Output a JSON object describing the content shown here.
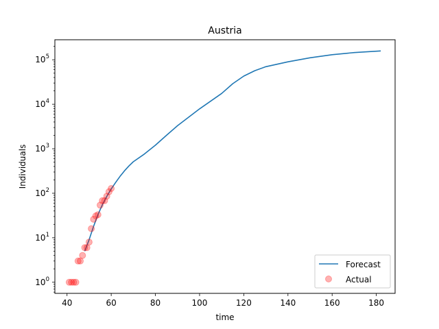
{
  "chart_data": {
    "type": "line",
    "title": "Austria",
    "xlabel": "time",
    "ylabel": "Individuals",
    "xlim": [
      34.5,
      188.5
    ],
    "ylim_log10": [
      -0.25,
      5.45
    ],
    "y_scale": "log",
    "grid": false,
    "legend_position": "lower right",
    "x_ticks": [
      40,
      60,
      80,
      100,
      120,
      140,
      160,
      180
    ],
    "x_tick_labels": [
      "40",
      "60",
      "80",
      "100",
      "120",
      "140",
      "160",
      "180"
    ],
    "y_ticks": [
      1,
      10,
      100,
      1000,
      10000,
      100000
    ],
    "y_tick_labels": [
      {
        "base": "10",
        "exp": "0"
      },
      {
        "base": "10",
        "exp": "1"
      },
      {
        "base": "10",
        "exp": "2"
      },
      {
        "base": "10",
        "exp": "3"
      },
      {
        "base": "10",
        "exp": "4"
      },
      {
        "base": "10",
        "exp": "5"
      }
    ],
    "series": [
      {
        "name": "Forecast",
        "kind": "line",
        "color": "#1f77b4",
        "x": [
          48,
          50,
          52,
          54,
          56,
          58,
          60,
          62,
          64,
          66,
          68,
          70,
          75,
          80,
          85,
          90,
          100,
          110,
          115,
          120,
          125,
          130,
          140,
          150,
          160,
          170,
          182
        ],
        "y": [
          5,
          9,
          18,
          33,
          55,
          85,
          125,
          175,
          240,
          320,
          410,
          510,
          760,
          1200,
          2000,
          3300,
          7900,
          17500,
          29000,
          43000,
          57000,
          70000,
          90000,
          111000,
          130000,
          145000,
          158000
        ]
      },
      {
        "name": "Actual",
        "kind": "scatter",
        "color": "#ff0000",
        "alpha": 0.3,
        "x": [
          41,
          42,
          43,
          44,
          45,
          46,
          47,
          48,
          49,
          50,
          51,
          52,
          53,
          54,
          55,
          56,
          57,
          58,
          59,
          60
        ],
        "y": [
          1,
          1,
          1,
          1,
          3,
          3,
          4,
          6,
          6,
          8,
          16,
          26,
          31,
          33,
          54,
          68,
          68,
          86,
          108,
          128
        ]
      }
    ]
  }
}
